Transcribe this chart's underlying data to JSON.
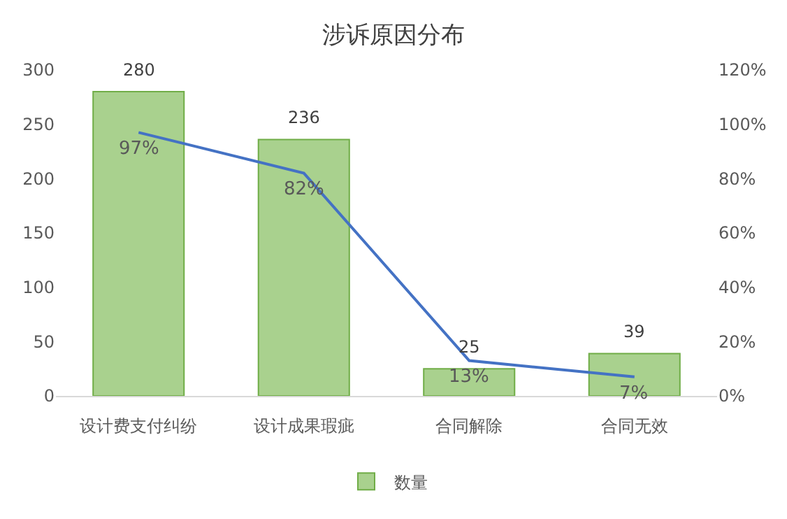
{
  "chart_data": {
    "type": "bar",
    "title": "涉诉原因分布",
    "categories": [
      "设计费支付纠纷",
      "设计成果瑕疵",
      "合同解除",
      "合同无效"
    ],
    "series": [
      {
        "name": "数量",
        "color": "#a9d18e",
        "values": [
          280,
          236,
          25,
          39
        ],
        "value_labels": [
          "280",
          "236",
          "25",
          "39"
        ]
      },
      {
        "type": "line",
        "axis": "y2",
        "color": "#4472c4",
        "values": [
          97,
          82,
          13,
          7
        ],
        "value_labels": [
          "97%",
          "82%",
          "13%",
          "7%"
        ]
      }
    ],
    "ylim": [
      0,
      300
    ],
    "yticks": [
      0,
      50,
      100,
      150,
      200,
      250,
      300
    ],
    "y2lim": [
      0,
      120
    ],
    "y2ticks": [
      {
        "value": 0,
        "label": "0%"
      },
      {
        "value": 20,
        "label": "20%"
      },
      {
        "value": 40,
        "label": "40%"
      },
      {
        "value": 60,
        "label": "60%"
      },
      {
        "value": 80,
        "label": "80%"
      },
      {
        "value": 100,
        "label": "100%"
      },
      {
        "value": 120,
        "label": "120%"
      }
    ],
    "legend": "bottom",
    "marker": "none"
  }
}
